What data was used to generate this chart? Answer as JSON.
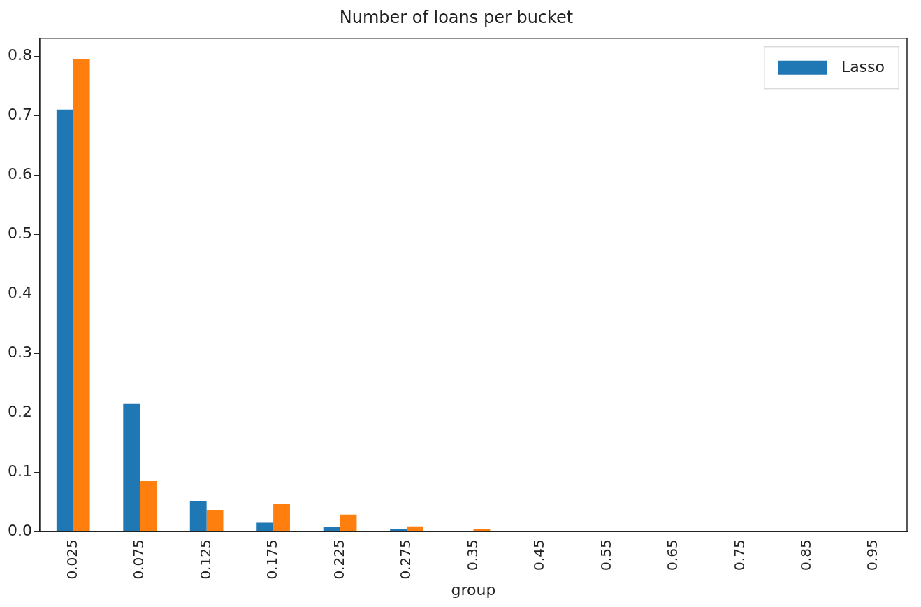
{
  "chart_data": {
    "type": "bar",
    "title": "Number of loans per bucket",
    "xlabel": "group",
    "categories": [
      "0.025",
      "0.075",
      "0.125",
      "0.175",
      "0.225",
      "0.275",
      "0.35",
      "0.45",
      "0.55",
      "0.65",
      "0.75",
      "0.85",
      "0.95"
    ],
    "series": [
      {
        "name": "Lasso",
        "color": "#1f77b4",
        "values": [
          0.71,
          0.216,
          0.051,
          0.015,
          0.008,
          0.004,
          0.001,
          0,
          0,
          0,
          0,
          0,
          0
        ]
      },
      {
        "color": "#ff7f0e",
        "values": [
          0.795,
          0.085,
          0.036,
          0.047,
          0.029,
          0.009,
          0.005,
          0,
          0,
          0,
          0,
          0,
          0
        ]
      }
    ],
    "ylim": [
      0,
      0.83
    ],
    "yticks": [
      {
        "value": 0,
        "label": "0.0"
      },
      0.1,
      0.2,
      0.3,
      0.4,
      0.5,
      0.6,
      0.7,
      0.8
    ],
    "grid": false,
    "legend": "top right"
  }
}
